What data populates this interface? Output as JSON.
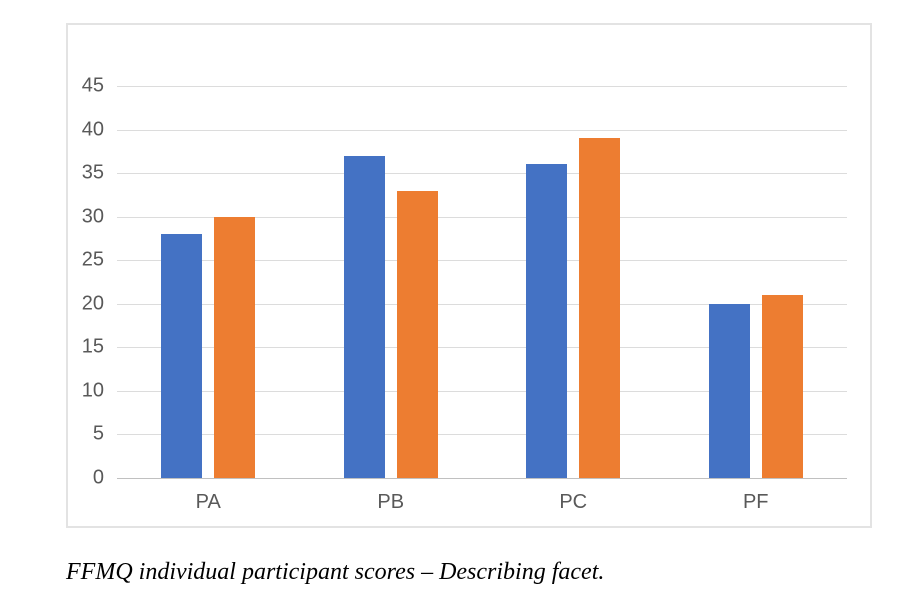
{
  "caption": "FFMQ individual participant scores – Describing facet.",
  "chart_data": {
    "type": "bar",
    "title": "",
    "xlabel": "",
    "ylabel": "",
    "categories": [
      "PA",
      "PB",
      "PC",
      "PF"
    ],
    "series": [
      {
        "color": "#4472C4",
        "values": [
          28,
          37,
          36,
          20
        ]
      },
      {
        "color": "#ED7D31",
        "values": [
          30,
          33,
          39,
          21
        ]
      }
    ],
    "ylim": [
      0,
      45
    ],
    "yticks": [
      45,
      40,
      35,
      30,
      25,
      20,
      15,
      10,
      5,
      0
    ],
    "grid": true,
    "legend": "none"
  },
  "colors": {
    "background": "#FFFFFF",
    "chart_border": "#E3E3E3",
    "gridline": "#DCDCDC",
    "axis_line": "#C0C0C0",
    "tick_label": "#595959"
  }
}
